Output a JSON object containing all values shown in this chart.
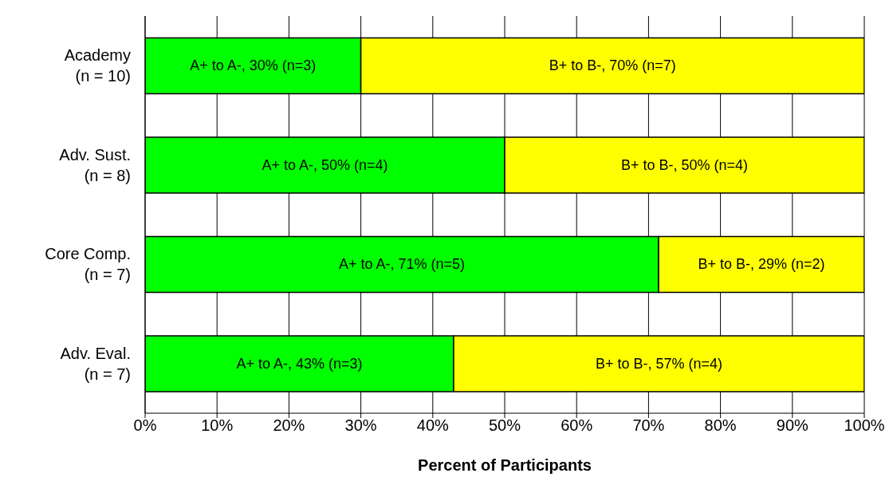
{
  "chart_data": {
    "type": "bar",
    "orientation": "horizontal",
    "stacked": true,
    "xlabel": "Percent of Participants",
    "categories": [
      "Academy\n(n = 10)",
      "Adv. Sust.\n(n = 8)",
      "Core Comp.\n(n = 7)",
      "Adv. Eval.\n(n = 7)"
    ],
    "series": [
      {
        "color": "#00ff00",
        "values": [
          30,
          50,
          71.4,
          42.9
        ],
        "value_labels": [
          "A+ to A-, 30% (n=3)",
          "A+ to A-, 50% (n=4)",
          "A+ to A-, 71% (n=5)",
          "A+ to A-, 43% (n=3)"
        ]
      },
      {
        "color": "#ffff00",
        "values": [
          70,
          50,
          28.6,
          57.1
        ],
        "value_labels": [
          "B+ to B-, 70% (n=7)",
          "B+ to B-, 50% (n=4)",
          "B+ to B-, 29% (n=2)",
          "B+ to B-, 57% (n=4)"
        ]
      }
    ],
    "xlim": [
      0,
      100
    ],
    "xticks": [
      {
        "value": 0,
        "label": "0%"
      },
      {
        "value": 10,
        "label": "10%"
      },
      {
        "value": 20,
        "label": "20%"
      },
      {
        "value": 30,
        "label": "30%"
      },
      {
        "value": 40,
        "label": "40%"
      },
      {
        "value": 50,
        "label": "50%"
      },
      {
        "value": 60,
        "label": "60%"
      },
      {
        "value": 70,
        "label": "70%"
      },
      {
        "value": 80,
        "label": "80%"
      },
      {
        "value": 90,
        "label": "90%"
      },
      {
        "value": 100,
        "label": "100%"
      }
    ],
    "grid": "x"
  }
}
